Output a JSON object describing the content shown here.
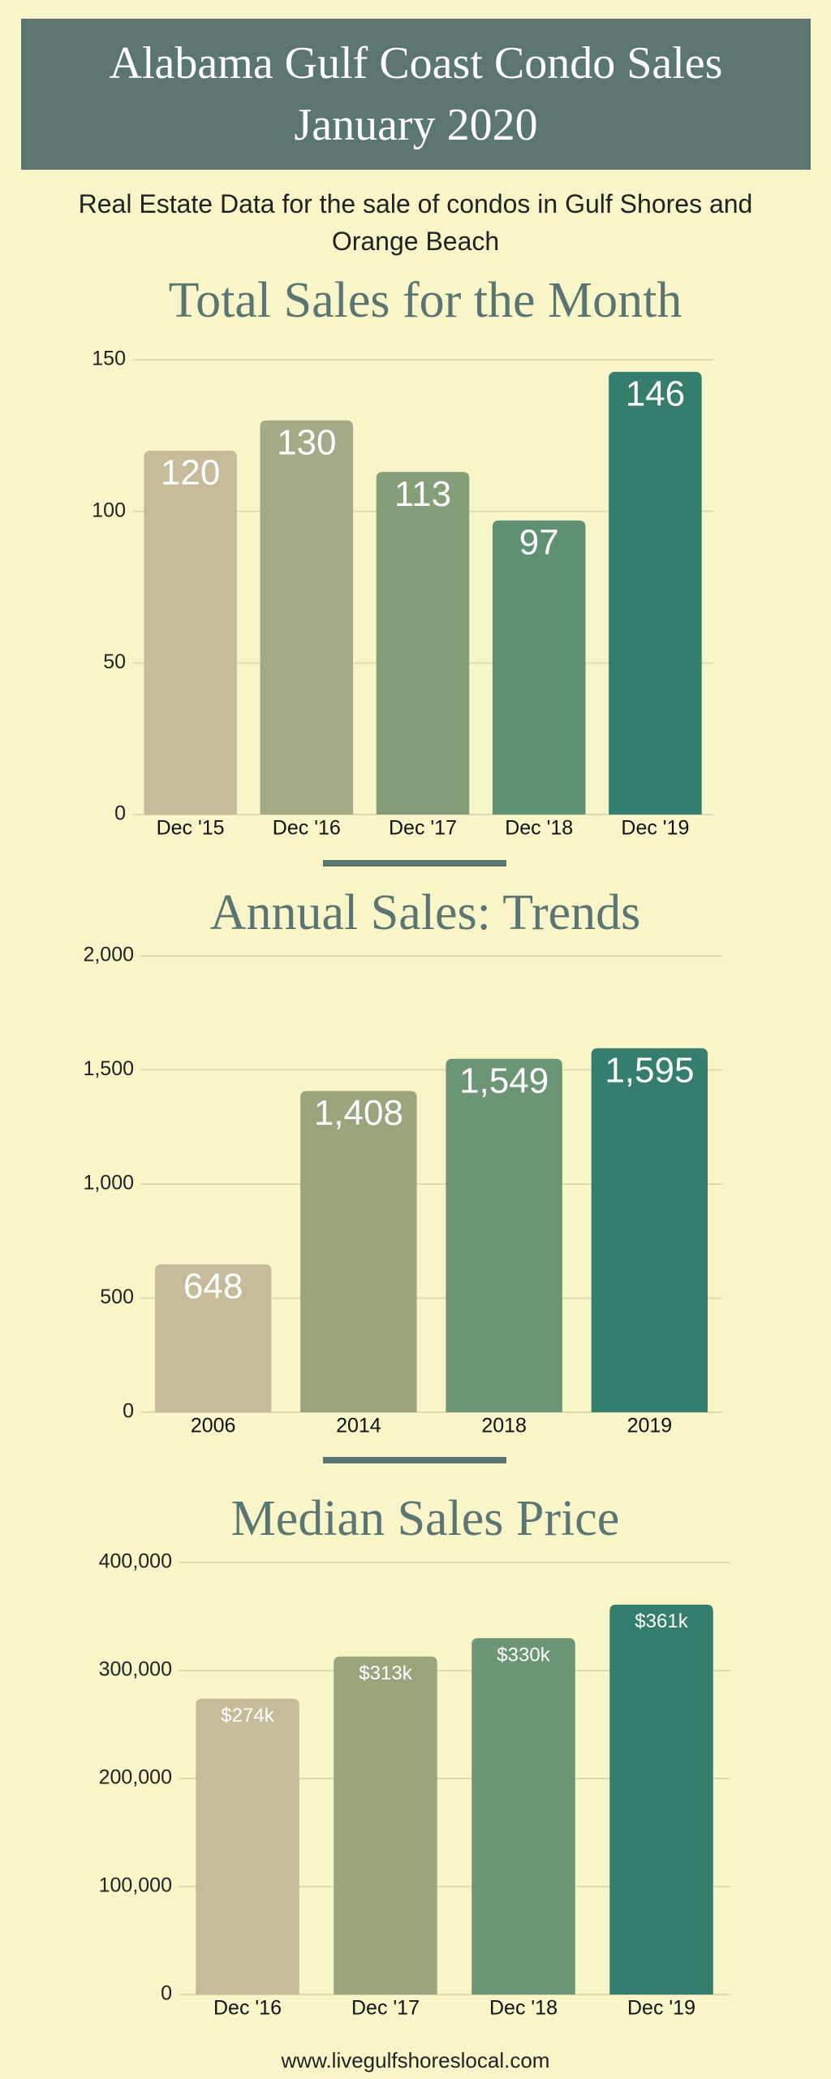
{
  "header": {
    "title": "Alabama Gulf Coast Condo Sales January 2020",
    "subtitle": "Real Estate Data for the sale of condos in Gulf Shores and Orange Beach"
  },
  "footer": "www.livegulfshoreslocal.com",
  "chart_data": [
    {
      "type": "bar",
      "title": "Total Sales for the Month",
      "categories": [
        "Dec '15",
        "Dec '16",
        "Dec '17",
        "Dec '18",
        "Dec '19"
      ],
      "values": [
        120,
        130,
        113,
        97,
        146
      ],
      "colors": [
        "#c6bb98",
        "#a4aa86",
        "#859e78",
        "#5e9174",
        "#357e6e"
      ],
      "ylim": [
        0,
        150
      ],
      "yticks": [
        0,
        50,
        100,
        150
      ],
      "grid": true
    },
    {
      "type": "bar",
      "title": "Annual Sales: Trends",
      "categories": [
        "2006",
        "2014",
        "2018",
        "2019"
      ],
      "values": [
        648,
        1408,
        1549,
        1595
      ],
      "value_labels": [
        "648",
        "1,408",
        "1,549",
        "1,595"
      ],
      "colors": [
        "#c6bb98",
        "#9aa57e",
        "#6b9574",
        "#357e6e"
      ],
      "ylim": [
        0,
        2000
      ],
      "yticks": [
        0,
        500,
        {
          "value": 1000,
          "label": "1,000"
        },
        {
          "value": 1500,
          "label": "1,500"
        },
        {
          "value": 2000,
          "label": "2,000"
        }
      ],
      "grid": true
    },
    {
      "type": "bar",
      "title": "Median Sales Price",
      "categories": [
        "Dec '16",
        "Dec '17",
        "Dec '18",
        "Dec '19"
      ],
      "values": [
        274000,
        313000,
        330000,
        361000
      ],
      "value_labels": [
        "$274k",
        "$313k",
        "$330k",
        "$361k"
      ],
      "colors": [
        "#c6bb98",
        "#9aa57e",
        "#6b9574",
        "#357e6e"
      ],
      "ylim": [
        0,
        400000
      ],
      "yticks": [
        0,
        {
          "value": 100000,
          "label": "100,000"
        },
        {
          "value": 200000,
          "label": "200,000"
        },
        {
          "value": 300000,
          "label": "300,000"
        },
        {
          "value": 400000,
          "label": "400,000"
        }
      ],
      "grid": true
    }
  ]
}
